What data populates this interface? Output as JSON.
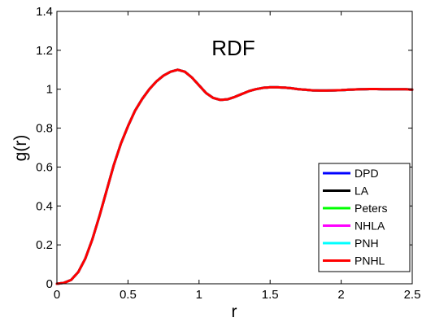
{
  "chart_data": {
    "type": "line",
    "title": "RDF",
    "xlabel": "r",
    "ylabel": "g(r)",
    "xlim": [
      0,
      2.5
    ],
    "ylim": [
      0,
      1.4
    ],
    "xticks": [
      0,
      0.5,
      1,
      1.5,
      2,
      2.5
    ],
    "xtick_labels": [
      "0",
      "0.5",
      "1",
      "1.5",
      "2",
      "2.5"
    ],
    "yticks": [
      0,
      0.2,
      0.4,
      0.6,
      0.8,
      1,
      1.2,
      1.4
    ],
    "ytick_labels": [
      "0",
      "0.2",
      "0.4",
      "0.6",
      "0.8",
      "1",
      "1.2",
      "1.4"
    ],
    "grid": false,
    "legend_position": "bottom-right",
    "x": [
      0,
      0.05,
      0.1,
      0.15,
      0.2,
      0.25,
      0.3,
      0.35,
      0.4,
      0.45,
      0.5,
      0.55,
      0.6,
      0.65,
      0.7,
      0.75,
      0.8,
      0.85,
      0.9,
      0.95,
      1.0,
      1.05,
      1.1,
      1.15,
      1.2,
      1.25,
      1.3,
      1.35,
      1.4,
      1.45,
      1.5,
      1.55,
      1.6,
      1.65,
      1.7,
      1.75,
      1.8,
      1.85,
      1.9,
      1.95,
      2.0,
      2.05,
      2.1,
      2.15,
      2.2,
      2.25,
      2.3,
      2.35,
      2.4,
      2.45,
      2.5
    ],
    "series": [
      {
        "name": "DPD",
        "color": "#0000ff",
        "values": [
          0,
          0.005,
          0.02,
          0.06,
          0.13,
          0.23,
          0.35,
          0.48,
          0.61,
          0.72,
          0.81,
          0.89,
          0.95,
          1.0,
          1.04,
          1.07,
          1.09,
          1.1,
          1.09,
          1.06,
          1.02,
          0.98,
          0.955,
          0.945,
          0.948,
          0.96,
          0.975,
          0.99,
          1.0,
          1.007,
          1.01,
          1.01,
          1.008,
          1.005,
          1.0,
          0.997,
          0.994,
          0.993,
          0.993,
          0.994,
          0.995,
          0.997,
          0.999,
          1.0,
          1.001,
          1.001,
          1.0,
          1.0,
          1.0,
          1.0,
          0.998
        ]
      },
      {
        "name": "LA",
        "color": "#000000",
        "values": [
          0,
          0.005,
          0.02,
          0.06,
          0.13,
          0.23,
          0.35,
          0.48,
          0.61,
          0.72,
          0.81,
          0.89,
          0.95,
          1.0,
          1.04,
          1.07,
          1.09,
          1.1,
          1.09,
          1.06,
          1.02,
          0.98,
          0.955,
          0.945,
          0.948,
          0.96,
          0.975,
          0.99,
          1.0,
          1.007,
          1.01,
          1.01,
          1.008,
          1.005,
          1.0,
          0.997,
          0.994,
          0.993,
          0.993,
          0.994,
          0.995,
          0.997,
          0.999,
          1.0,
          1.001,
          1.001,
          1.0,
          1.0,
          1.0,
          1.0,
          0.998
        ]
      },
      {
        "name": "Peters",
        "color": "#00ff00",
        "values": [
          0,
          0.005,
          0.02,
          0.06,
          0.13,
          0.23,
          0.35,
          0.48,
          0.61,
          0.72,
          0.81,
          0.89,
          0.95,
          1.0,
          1.04,
          1.07,
          1.09,
          1.1,
          1.09,
          1.06,
          1.02,
          0.98,
          0.955,
          0.945,
          0.948,
          0.96,
          0.975,
          0.99,
          1.0,
          1.007,
          1.01,
          1.01,
          1.008,
          1.005,
          1.0,
          0.997,
          0.994,
          0.993,
          0.993,
          0.994,
          0.995,
          0.997,
          0.999,
          1.0,
          1.001,
          1.001,
          1.0,
          1.0,
          1.0,
          1.0,
          0.998
        ]
      },
      {
        "name": "NHLA",
        "color": "#ff00ff",
        "values": [
          0,
          0.005,
          0.02,
          0.06,
          0.13,
          0.23,
          0.35,
          0.48,
          0.61,
          0.72,
          0.81,
          0.89,
          0.95,
          1.0,
          1.04,
          1.07,
          1.09,
          1.1,
          1.09,
          1.06,
          1.02,
          0.98,
          0.955,
          0.945,
          0.948,
          0.96,
          0.975,
          0.99,
          1.0,
          1.007,
          1.01,
          1.01,
          1.008,
          1.005,
          1.0,
          0.997,
          0.994,
          0.993,
          0.993,
          0.994,
          0.995,
          0.997,
          0.999,
          1.0,
          1.001,
          1.001,
          1.0,
          1.0,
          1.0,
          1.0,
          0.998
        ]
      },
      {
        "name": "PNH",
        "color": "#00ffff",
        "values": [
          0,
          0.005,
          0.02,
          0.06,
          0.13,
          0.23,
          0.35,
          0.48,
          0.61,
          0.72,
          0.81,
          0.89,
          0.95,
          1.0,
          1.04,
          1.07,
          1.09,
          1.1,
          1.09,
          1.06,
          1.02,
          0.98,
          0.955,
          0.945,
          0.948,
          0.96,
          0.975,
          0.99,
          1.0,
          1.007,
          1.01,
          1.01,
          1.008,
          1.005,
          1.0,
          0.997,
          0.994,
          0.993,
          0.993,
          0.994,
          0.995,
          0.997,
          0.999,
          1.0,
          1.001,
          1.001,
          1.0,
          1.0,
          1.0,
          1.0,
          0.998
        ]
      },
      {
        "name": "PNHL",
        "color": "#ff0000",
        "values": [
          0,
          0.005,
          0.02,
          0.06,
          0.13,
          0.23,
          0.35,
          0.48,
          0.61,
          0.72,
          0.81,
          0.89,
          0.95,
          1.0,
          1.04,
          1.07,
          1.09,
          1.1,
          1.09,
          1.06,
          1.02,
          0.98,
          0.955,
          0.945,
          0.948,
          0.96,
          0.975,
          0.99,
          1.0,
          1.007,
          1.01,
          1.01,
          1.008,
          1.005,
          1.0,
          0.997,
          0.994,
          0.993,
          0.993,
          0.994,
          0.995,
          0.997,
          0.999,
          1.0,
          1.001,
          1.001,
          1.0,
          1.0,
          1.0,
          1.0,
          0.998
        ]
      }
    ]
  }
}
